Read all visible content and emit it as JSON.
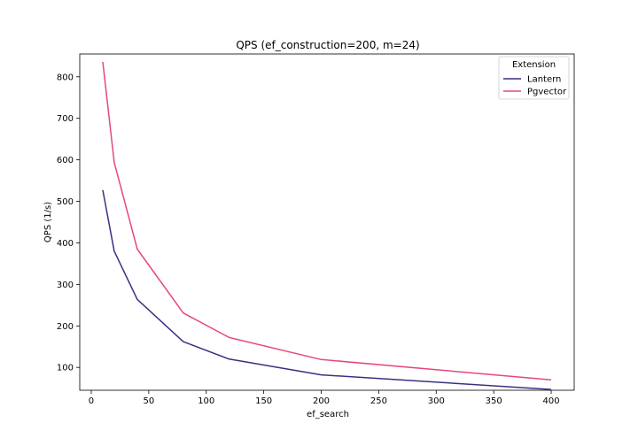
{
  "chart_data": {
    "type": "line",
    "title": "QPS (ef_construction=200, m=24)",
    "xlabel": "ef_search",
    "ylabel": "QPS (1/s)",
    "xlim": [
      -10,
      420
    ],
    "ylim": [
      45,
      855
    ],
    "xticks": [
      0,
      50,
      100,
      150,
      200,
      250,
      300,
      350,
      400
    ],
    "yticks": [
      100,
      200,
      300,
      400,
      500,
      600,
      700,
      800
    ],
    "grid": false,
    "legend": {
      "title": "Extension",
      "position": "top-right"
    },
    "series": [
      {
        "name": "Lantern",
        "color": "#3b2f80",
        "x": [
          10,
          20,
          40,
          80,
          120,
          200,
          400
        ],
        "y": [
          527,
          380,
          264,
          162,
          120,
          82,
          47
        ]
      },
      {
        "name": "Pgvector",
        "color": "#e54683",
        "x": [
          10,
          20,
          40,
          80,
          120,
          200,
          400
        ],
        "y": [
          836,
          594,
          385,
          231,
          172,
          119,
          70
        ]
      }
    ]
  }
}
